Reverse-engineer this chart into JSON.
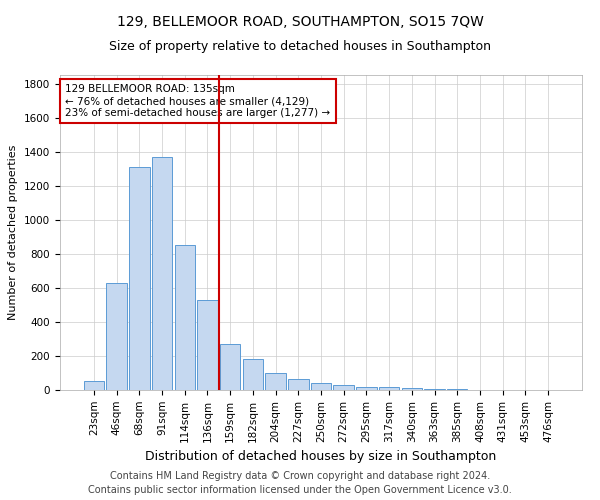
{
  "title": "129, BELLEMOOR ROAD, SOUTHAMPTON, SO15 7QW",
  "subtitle": "Size of property relative to detached houses in Southampton",
  "xlabel": "Distribution of detached houses by size in Southampton",
  "ylabel": "Number of detached properties",
  "categories": [
    "23sqm",
    "46sqm",
    "68sqm",
    "91sqm",
    "114sqm",
    "136sqm",
    "159sqm",
    "182sqm",
    "204sqm",
    "227sqm",
    "250sqm",
    "272sqm",
    "295sqm",
    "317sqm",
    "340sqm",
    "363sqm",
    "385sqm",
    "408sqm",
    "431sqm",
    "453sqm",
    "476sqm"
  ],
  "values": [
    50,
    630,
    1310,
    1370,
    850,
    530,
    270,
    180,
    100,
    65,
    40,
    30,
    20,
    15,
    10,
    5,
    3,
    2,
    1,
    1,
    1
  ],
  "bar_color": "#c5d8f0",
  "bar_edge_color": "#5b9bd5",
  "vline_x": 5.5,
  "vline_color": "#cc0000",
  "annotation_line1": "129 BELLEMOOR ROAD: 135sqm",
  "annotation_line2": "← 76% of detached houses are smaller (4,129)",
  "annotation_line3": "23% of semi-detached houses are larger (1,277) →",
  "annotation_box_color": "#cc0000",
  "ylim": [
    0,
    1850
  ],
  "yticks": [
    0,
    200,
    400,
    600,
    800,
    1000,
    1200,
    1400,
    1600,
    1800
  ],
  "footer_line1": "Contains HM Land Registry data © Crown copyright and database right 2024.",
  "footer_line2": "Contains public sector information licensed under the Open Government Licence v3.0.",
  "background_color": "#ffffff",
  "grid_color": "#cccccc",
  "title_fontsize": 10,
  "subtitle_fontsize": 9,
  "xlabel_fontsize": 9,
  "ylabel_fontsize": 8,
  "tick_fontsize": 7.5,
  "annot_fontsize": 7.5,
  "footer_fontsize": 7
}
